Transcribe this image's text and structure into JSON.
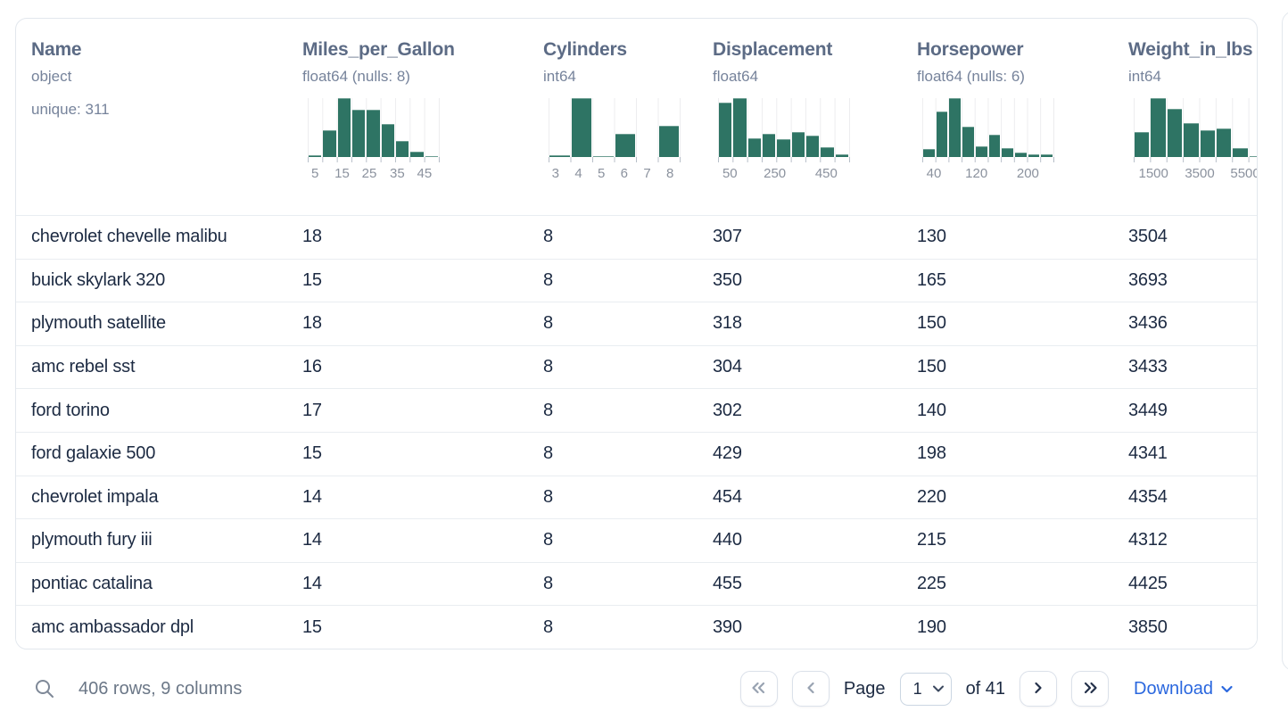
{
  "colors": {
    "histogram_bar": "#2e7464",
    "accent_blue": "#2a67de",
    "header_text": "#5c6b85",
    "dtype_text": "#76839b",
    "row_text": "#1c2a42"
  },
  "table": {
    "columns": [
      {
        "name": "Name",
        "dtype": "object",
        "extra": "unique: 311",
        "histogram": null
      },
      {
        "name": "Miles_per_Gallon",
        "dtype": "float64 (nulls: 8)",
        "extra": null,
        "histogram": {
          "bars": [
            3,
            46,
            100,
            81,
            81,
            56,
            27,
            9,
            2
          ],
          "labels": [
            {
              "text": "5",
              "frac": 0.055
            },
            {
              "text": "15",
              "frac": 0.26
            },
            {
              "text": "25",
              "frac": 0.466
            },
            {
              "text": "35",
              "frac": 0.678
            },
            {
              "text": "45",
              "frac": 0.884
            }
          ]
        }
      },
      {
        "name": "Cylinders",
        "dtype": "int64",
        "extra": null,
        "histogram": {
          "bars": [
            3,
            100,
            2,
            40,
            0,
            53
          ],
          "labels": [
            {
              "text": "3",
              "frac": 0.053
            },
            {
              "text": "4",
              "frac": 0.227
            },
            {
              "text": "5",
              "frac": 0.4
            },
            {
              "text": "6",
              "frac": 0.573
            },
            {
              "text": "7",
              "frac": 0.747
            },
            {
              "text": "8",
              "frac": 0.92
            }
          ]
        }
      },
      {
        "name": "Displacement",
        "dtype": "float64",
        "extra": null,
        "histogram": {
          "bars": [
            92,
            100,
            32,
            40,
            30,
            43,
            37,
            17,
            5
          ],
          "labels": [
            {
              "text": "50",
              "frac": 0.09
            },
            {
              "text": "250",
              "frac": 0.43
            },
            {
              "text": "450",
              "frac": 0.82
            }
          ]
        }
      },
      {
        "name": "Horsepower",
        "dtype": "float64 (nulls: 6)",
        "extra": null,
        "histogram": {
          "bars": [
            13,
            78,
            100,
            52,
            18,
            38,
            15,
            7,
            5,
            4
          ],
          "labels": [
            {
              "text": "40",
              "frac": 0.088
            },
            {
              "text": "120",
              "frac": 0.41
            },
            {
              "text": "200",
              "frac": 0.8
            }
          ]
        }
      },
      {
        "name": "Weight_in_lbs",
        "dtype": "int64",
        "extra": null,
        "histogram": {
          "bars": [
            42,
            100,
            82,
            58,
            45,
            48,
            15,
            2
          ],
          "labels": [
            {
              "text": "1500",
              "frac": 0.15
            },
            {
              "text": "3500",
              "frac": 0.5
            },
            {
              "text": "5500",
              "frac": 0.845
            }
          ]
        }
      }
    ],
    "rows": [
      [
        "chevrolet chevelle malibu",
        "18",
        "8",
        "307",
        "130",
        "3504"
      ],
      [
        "buick skylark 320",
        "15",
        "8",
        "350",
        "165",
        "3693"
      ],
      [
        "plymouth satellite",
        "18",
        "8",
        "318",
        "150",
        "3436"
      ],
      [
        "amc rebel sst",
        "16",
        "8",
        "304",
        "150",
        "3433"
      ],
      [
        "ford torino",
        "17",
        "8",
        "302",
        "140",
        "3449"
      ],
      [
        "ford galaxie 500",
        "15",
        "8",
        "429",
        "198",
        "4341"
      ],
      [
        "chevrolet impala",
        "14",
        "8",
        "454",
        "220",
        "4354"
      ],
      [
        "plymouth fury iii",
        "14",
        "8",
        "440",
        "215",
        "4312"
      ],
      [
        "pontiac catalina",
        "14",
        "8",
        "455",
        "225",
        "4425"
      ],
      [
        "amc ambassador dpl",
        "15",
        "8",
        "390",
        "190",
        "3850"
      ]
    ]
  },
  "footer": {
    "summary": "406 rows, 9 columns",
    "page_label": "Page",
    "page_value": "1",
    "of_label": "of 41",
    "download_label": "Download"
  }
}
